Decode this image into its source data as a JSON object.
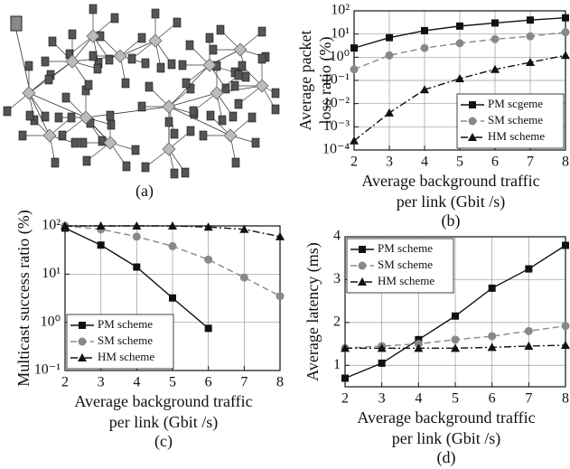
{
  "diagram": {
    "caption": "(a)"
  },
  "chart_data": [
    {
      "type": "line",
      "caption": "(b)",
      "log_y": true,
      "grid": true,
      "legend": "lower right",
      "ylabel": [
        "Average packet",
        "loss ratio (%)"
      ],
      "xlabel": [
        "Average background traffic",
        "per link (Gbit /s)"
      ],
      "x": [
        2,
        3,
        4,
        5,
        6,
        7,
        8
      ],
      "xlim": [
        2,
        8
      ],
      "xticks": [
        2,
        3,
        4,
        5,
        6,
        7,
        8
      ],
      "ylim": [
        0.0001,
        100
      ],
      "yticks": [
        {
          "value": 0.0001,
          "label": "10⁻⁴"
        },
        {
          "value": 0.001,
          "label": "10⁻³"
        },
        {
          "value": 0.01,
          "label": "10⁻²"
        },
        {
          "value": 0.1,
          "label": "10⁻¹"
        },
        {
          "value": 1,
          "label": "10⁰"
        },
        {
          "value": 10,
          "label": "10¹"
        },
        {
          "value": 100,
          "label": "10²"
        }
      ],
      "series": [
        {
          "name": "PM scgeme",
          "color": "#111111",
          "marker": "square",
          "dash": "solid",
          "values": [
            2.5,
            7,
            14,
            22,
            30,
            40,
            50
          ]
        },
        {
          "name": "SM scheme",
          "color": "#888888",
          "marker": "circle",
          "dash": "dashed",
          "values": [
            0.3,
            1.2,
            2.5,
            4,
            6,
            8,
            12
          ]
        },
        {
          "name": "HM scheme",
          "color": "#111111",
          "marker": "triangle",
          "dash": "dashdot",
          "values": [
            0.00025,
            0.004,
            0.04,
            0.12,
            0.3,
            0.6,
            1.2
          ]
        }
      ]
    },
    {
      "type": "line",
      "caption": "(c)",
      "log_y": true,
      "grid": true,
      "legend": "lower left",
      "ylabel": [
        "Multicast success ratio (%)"
      ],
      "xlabel": [
        "Average background traffic",
        "per link (Gbit /s)"
      ],
      "x": [
        2,
        3,
        4,
        5,
        6,
        7,
        8
      ],
      "xlim": [
        2,
        8
      ],
      "xticks": [
        2,
        3,
        4,
        5,
        6,
        7,
        8
      ],
      "ylim": [
        0.1,
        100
      ],
      "yticks": [
        {
          "value": 0.1,
          "label": "10⁻¹"
        },
        {
          "value": 1,
          "label": "10⁰"
        },
        {
          "value": 10,
          "label": "10¹"
        },
        {
          "value": 100,
          "label": "10²"
        }
      ],
      "series": [
        {
          "name": "PM scheme",
          "color": "#111111",
          "marker": "square",
          "dash": "solid",
          "values": [
            90,
            40,
            14,
            3.2,
            0.75,
            null,
            null
          ]
        },
        {
          "name": "SM scheme",
          "color": "#888888",
          "marker": "circle",
          "dash": "dashed",
          "values": [
            100,
            85,
            60,
            38,
            20,
            8.5,
            3.5
          ]
        },
        {
          "name": "HM scheme",
          "color": "#111111",
          "marker": "triangle",
          "dash": "dashdot",
          "values": [
            100,
            100,
            100,
            100,
            95,
            85,
            60
          ]
        }
      ]
    },
    {
      "type": "line",
      "caption": "(d)",
      "log_y": false,
      "grid": true,
      "legend": "upper left",
      "ylabel": [
        "Average latency (ms)"
      ],
      "xlabel": [
        "Average background traffic",
        "per link (Gbit /s)"
      ],
      "x": [
        2,
        3,
        4,
        5,
        6,
        7,
        8
      ],
      "xlim": [
        2,
        8
      ],
      "xticks": [
        2,
        3,
        4,
        5,
        6,
        7,
        8
      ],
      "ylim": [
        0.5,
        4
      ],
      "yticks": [
        1,
        2,
        3,
        4
      ],
      "series": [
        {
          "name": "PM scheme",
          "color": "#111111",
          "marker": "square",
          "dash": "solid",
          "values": [
            0.7,
            1.05,
            1.6,
            2.15,
            2.8,
            3.25,
            3.8
          ]
        },
        {
          "name": "SM scheme",
          "color": "#888888",
          "marker": "circle",
          "dash": "dashed",
          "values": [
            1.4,
            1.45,
            1.5,
            1.6,
            1.68,
            1.8,
            1.92
          ]
        },
        {
          "name": "HM scheme",
          "color": "#111111",
          "marker": "triangle",
          "dash": "dashdot",
          "values": [
            1.4,
            1.4,
            1.4,
            1.4,
            1.42,
            1.45,
            1.47
          ]
        }
      ]
    }
  ]
}
